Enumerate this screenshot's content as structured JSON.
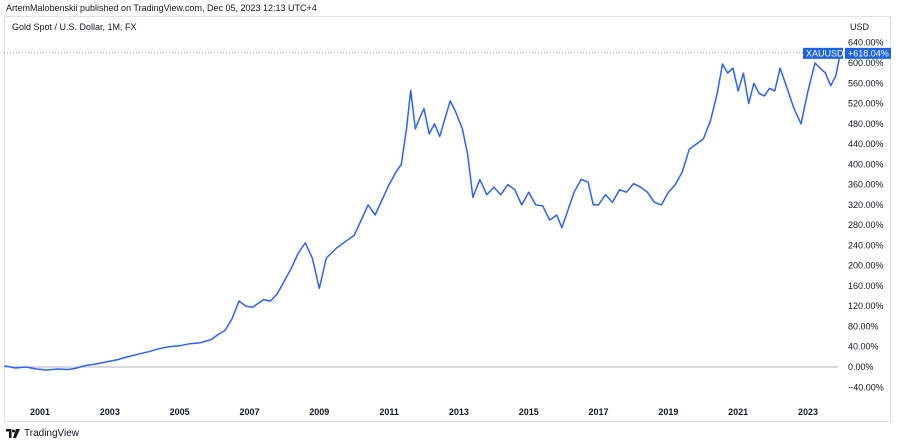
{
  "header": {
    "published": "ArtemMalobenskii published on TradingView.com, Dec 05, 2023 12:13 UTC+4",
    "symbol_title": "Gold Spot / U.S. Dollar, 1M, FX",
    "currency": "USD"
  },
  "footer": {
    "brand": "TradingView",
    "logo_icon": "tradingview-logo-icon"
  },
  "colors": {
    "line": "#2962ff",
    "badge_bg": "#1e63e6",
    "badge_text": "#ffffff",
    "zero_line": "#b2b5be",
    "current_price_line": "#8f96a8"
  },
  "chart_data": {
    "type": "line",
    "title": "Gold Spot / U.S. Dollar, 1M, FX",
    "ylabel": "%",
    "xlabel": "",
    "ylim": [
      -50,
      650
    ],
    "xlim": [
      2000.0,
      2024.3
    ],
    "y_ticks": [
      640,
      600,
      560,
      520,
      480,
      440,
      400,
      360,
      320,
      280,
      240,
      200,
      160,
      120,
      80,
      40,
      0,
      -40
    ],
    "y_tick_labels": [
      "640.00%",
      "600.00%",
      "560.00%",
      "520.00%",
      "480.00%",
      "440.00%",
      "400.00%",
      "360.00%",
      "320.00%",
      "280.00%",
      "240.00%",
      "200.00%",
      "160.00%",
      "120.00%",
      "80.00%",
      "40.00%",
      "0.00%",
      "−40.00%"
    ],
    "x_ticks": [
      2001,
      2003,
      2005,
      2007,
      2009,
      2011,
      2013,
      2015,
      2017,
      2019,
      2021,
      2023
    ],
    "x_tick_labels": [
      "2001",
      "2003",
      "2005",
      "2007",
      "2009",
      "2011",
      "2013",
      "2015",
      "2017",
      "2019",
      "2021",
      "2023"
    ],
    "grid": false,
    "legend": "none",
    "current_badge": {
      "symbol": "XAUUSD",
      "value_label": "+618.04%",
      "value": 618.04
    },
    "series": [
      {
        "name": "XAUUSD",
        "points": [
          [
            2000.0,
            2
          ],
          [
            2000.3,
            -2
          ],
          [
            2000.6,
            0
          ],
          [
            2000.9,
            -4
          ],
          [
            2001.2,
            -6
          ],
          [
            2001.5,
            -4
          ],
          [
            2001.8,
            -5
          ],
          [
            2002.0,
            -3
          ],
          [
            2002.3,
            3
          ],
          [
            2002.6,
            6
          ],
          [
            2002.9,
            10
          ],
          [
            2003.2,
            14
          ],
          [
            2003.5,
            20
          ],
          [
            2003.8,
            25
          ],
          [
            2004.1,
            30
          ],
          [
            2004.4,
            36
          ],
          [
            2004.7,
            40
          ],
          [
            2005.0,
            42
          ],
          [
            2005.3,
            46
          ],
          [
            2005.6,
            48
          ],
          [
            2005.9,
            54
          ],
          [
            2006.1,
            64
          ],
          [
            2006.3,
            72
          ],
          [
            2006.5,
            95
          ],
          [
            2006.7,
            130
          ],
          [
            2006.9,
            120
          ],
          [
            2007.1,
            118
          ],
          [
            2007.4,
            133
          ],
          [
            2007.6,
            130
          ],
          [
            2007.8,
            145
          ],
          [
            2008.0,
            170
          ],
          [
            2008.2,
            195
          ],
          [
            2008.4,
            225
          ],
          [
            2008.6,
            245
          ],
          [
            2008.8,
            215
          ],
          [
            2009.0,
            155
          ],
          [
            2009.2,
            215
          ],
          [
            2009.5,
            235
          ],
          [
            2009.8,
            250
          ],
          [
            2010.0,
            260
          ],
          [
            2010.2,
            290
          ],
          [
            2010.4,
            320
          ],
          [
            2010.6,
            300
          ],
          [
            2010.8,
            330
          ],
          [
            2011.0,
            360
          ],
          [
            2011.2,
            385
          ],
          [
            2011.35,
            400
          ],
          [
            2011.5,
            470
          ],
          [
            2011.62,
            546
          ],
          [
            2011.75,
            470
          ],
          [
            2011.9,
            495
          ],
          [
            2012.0,
            510
          ],
          [
            2012.15,
            460
          ],
          [
            2012.3,
            480
          ],
          [
            2012.45,
            455
          ],
          [
            2012.6,
            490
          ],
          [
            2012.75,
            525
          ],
          [
            2012.9,
            505
          ],
          [
            2013.1,
            470
          ],
          [
            2013.25,
            420
          ],
          [
            2013.4,
            335
          ],
          [
            2013.6,
            370
          ],
          [
            2013.8,
            340
          ],
          [
            2014.0,
            355
          ],
          [
            2014.2,
            340
          ],
          [
            2014.4,
            360
          ],
          [
            2014.6,
            350
          ],
          [
            2014.8,
            320
          ],
          [
            2015.0,
            345
          ],
          [
            2015.2,
            320
          ],
          [
            2015.4,
            318
          ],
          [
            2015.6,
            290
          ],
          [
            2015.8,
            300
          ],
          [
            2015.95,
            275
          ],
          [
            2016.1,
            305
          ],
          [
            2016.3,
            345
          ],
          [
            2016.5,
            370
          ],
          [
            2016.7,
            365
          ],
          [
            2016.85,
            320
          ],
          [
            2017.0,
            320
          ],
          [
            2017.2,
            340
          ],
          [
            2017.4,
            325
          ],
          [
            2017.6,
            350
          ],
          [
            2017.8,
            345
          ],
          [
            2018.0,
            362
          ],
          [
            2018.2,
            355
          ],
          [
            2018.4,
            345
          ],
          [
            2018.6,
            325
          ],
          [
            2018.8,
            320
          ],
          [
            2019.0,
            345
          ],
          [
            2019.2,
            360
          ],
          [
            2019.4,
            385
          ],
          [
            2019.6,
            430
          ],
          [
            2019.8,
            440
          ],
          [
            2020.0,
            450
          ],
          [
            2020.2,
            485
          ],
          [
            2020.4,
            540
          ],
          [
            2020.55,
            598
          ],
          [
            2020.7,
            580
          ],
          [
            2020.85,
            590
          ],
          [
            2021.0,
            545
          ],
          [
            2021.15,
            580
          ],
          [
            2021.3,
            520
          ],
          [
            2021.45,
            560
          ],
          [
            2021.6,
            540
          ],
          [
            2021.75,
            535
          ],
          [
            2021.9,
            550
          ],
          [
            2022.05,
            545
          ],
          [
            2022.2,
            590
          ],
          [
            2022.4,
            550
          ],
          [
            2022.6,
            510
          ],
          [
            2022.8,
            480
          ],
          [
            2023.0,
            545
          ],
          [
            2023.2,
            600
          ],
          [
            2023.35,
            590
          ],
          [
            2023.5,
            580
          ],
          [
            2023.65,
            555
          ],
          [
            2023.8,
            575
          ],
          [
            2023.92,
            618.04
          ]
        ]
      }
    ]
  }
}
